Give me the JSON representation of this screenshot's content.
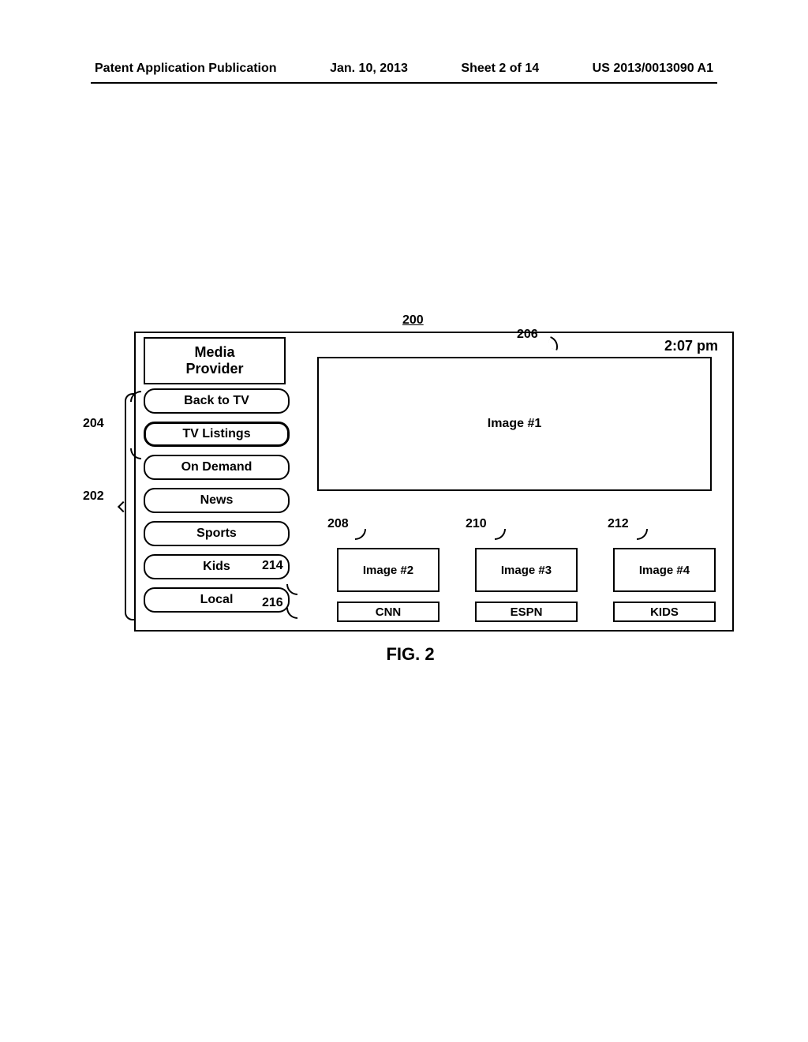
{
  "header": {
    "publication": "Patent Application Publication",
    "date": "Jan. 10, 2013",
    "sheet": "Sheet 2 of 14",
    "patent_number": "US 2013/0013090 A1"
  },
  "figure": {
    "ref_main": "200",
    "caption": "FIG. 2",
    "time": "2:07 pm",
    "provider_label": "Media\nProvider",
    "menu": [
      {
        "label": "Back to TV",
        "selected": false
      },
      {
        "label": "TV Listings",
        "selected": true
      },
      {
        "label": "On Demand",
        "selected": false
      },
      {
        "label": "News",
        "selected": false
      },
      {
        "label": "Sports",
        "selected": false
      },
      {
        "label": "Kids",
        "selected": false
      },
      {
        "label": "Local",
        "selected": false
      }
    ],
    "main_image_label": "Image #1",
    "thumbnails": [
      {
        "label": "Image #2"
      },
      {
        "label": "Image #3"
      },
      {
        "label": "Image #4"
      }
    ],
    "channels": [
      {
        "label": "CNN"
      },
      {
        "label": "ESPN"
      },
      {
        "label": "KIDS"
      }
    ],
    "ref_labels": {
      "r202": "202",
      "r204": "204",
      "r206": "206",
      "r208": "208",
      "r210": "210",
      "r212": "212",
      "r214": "214",
      "r216": "216"
    }
  },
  "colors": {
    "stroke": "#000000",
    "bg": "#ffffff"
  },
  "font": {
    "label_pt": 16,
    "caption_pt": 22,
    "weight": "bold"
  }
}
